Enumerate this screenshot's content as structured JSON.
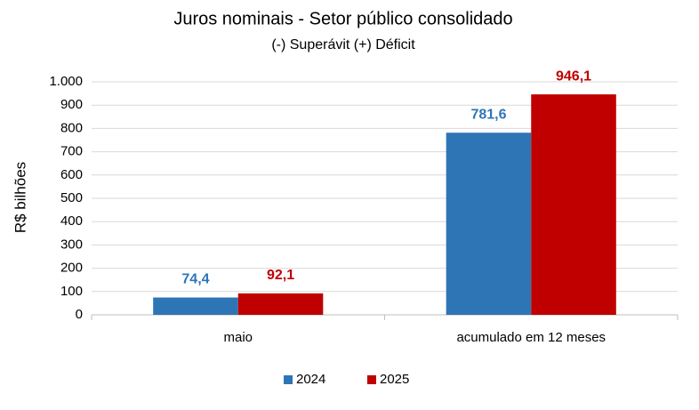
{
  "chart_data": {
    "type": "bar",
    "title": "Juros nominais - Setor público consolidado",
    "subtitle": "(-) Superávit  (+) Déficit",
    "y_label": "R$ bilhões",
    "categories": [
      "maio",
      "acumulado em 12 meses"
    ],
    "series": [
      {
        "name": "2024",
        "color": "#2e75b6",
        "values": [
          74.4,
          781.6
        ],
        "value_labels": [
          "74,4",
          "781,6"
        ]
      },
      {
        "name": "2025",
        "color": "#c00000",
        "values": [
          92.1,
          946.1
        ],
        "value_labels": [
          "92,1",
          "946,1"
        ]
      }
    ],
    "ylim": [
      0,
      1000
    ],
    "yticks": [
      0,
      100,
      200,
      300,
      400,
      500,
      600,
      700,
      800,
      900,
      {
        "value": 1000,
        "label": "1.000"
      }
    ],
    "grid": true,
    "legend": "bottom"
  }
}
